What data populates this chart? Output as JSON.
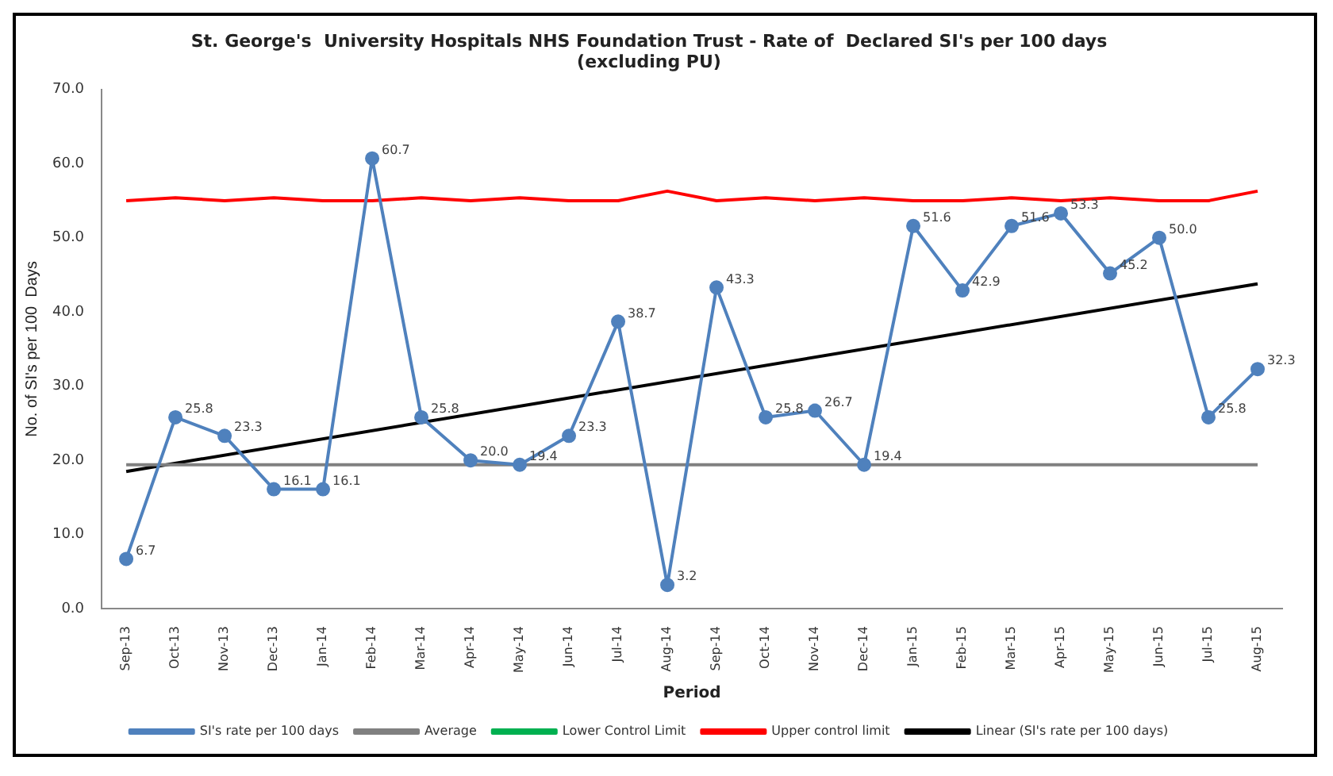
{
  "chart_data": {
    "type": "line",
    "title": "St. George's  University Hospitals NHS Foundation Trust - Rate of  Declared SI's per 100 days",
    "subtitle": "(excluding PU)",
    "xlabel": "Period",
    "ylabel": "No. of SI's per 100  Days",
    "categories": [
      "Sep-13",
      "Oct-13",
      "Nov-13",
      "Dec-13",
      "Jan-14",
      "Feb-14",
      "Mar-14",
      "Apr-14",
      "May-14",
      "Jun-14",
      "Jul-14",
      "Aug-14",
      "Sep-14",
      "Oct-14",
      "Nov-14",
      "Dec-14",
      "Jan-15",
      "Feb-15",
      "Mar-15",
      "Apr-15",
      "May-15",
      "Jun-15",
      "Jul-15",
      "Aug-15"
    ],
    "series": [
      {
        "name": "SI's rate per 100 days",
        "color": "#4f81bd",
        "marker": "circle",
        "value_labels": [
          "6.7",
          "25.8",
          "23.3",
          "16.1",
          "16.1",
          "60.7",
          "25.8",
          "20.0",
          "19.4",
          "23.3",
          "38.7",
          "3.2",
          "43.3",
          "25.8",
          "26.7",
          "19.4",
          "51.6",
          "42.9",
          "51.6",
          "53.3",
          "45.2",
          "50.0",
          "25.8",
          "32.3"
        ],
        "values": [
          6.7,
          25.8,
          23.3,
          16.1,
          16.1,
          60.7,
          25.8,
          20.0,
          19.4,
          23.3,
          38.7,
          3.2,
          43.3,
          25.8,
          26.7,
          19.4,
          51.6,
          42.9,
          51.6,
          53.3,
          45.2,
          50.0,
          25.8,
          32.3
        ]
      },
      {
        "name": "Average",
        "color": "#808080",
        "values": [
          19.4,
          19.4,
          19.4,
          19.4,
          19.4,
          19.4,
          19.4,
          19.4,
          19.4,
          19.4,
          19.4,
          19.4,
          19.4,
          19.4,
          19.4,
          19.4,
          19.4,
          19.4,
          19.4,
          19.4,
          19.4,
          19.4,
          19.4,
          19.4
        ]
      },
      {
        "name": "Lower Control Limit",
        "color": "#00b050",
        "values": [
          null,
          null,
          null,
          null,
          null,
          null,
          null,
          null,
          null,
          null,
          null,
          null,
          null,
          null,
          null,
          null,
          null,
          null,
          null,
          null,
          null,
          null,
          null,
          null
        ]
      },
      {
        "name": "Upper control limit",
        "color": "#ff0000",
        "values": [
          55.0,
          55.4,
          55.0,
          55.4,
          55.0,
          55.0,
          55.4,
          55.0,
          55.4,
          55.0,
          55.0,
          56.3,
          55.0,
          55.4,
          55.0,
          55.4,
          55.0,
          55.0,
          55.4,
          55.0,
          55.4,
          55.0,
          55.0,
          56.3
        ]
      },
      {
        "name": "Linear (SI's rate per 100 days)",
        "color": "#000000",
        "x": [
          "Sep-13",
          "Aug-15"
        ],
        "values": [
          18.5,
          43.8
        ]
      }
    ],
    "ylim": [
      0,
      70
    ],
    "yticks": [
      {
        "value": 0,
        "label": "0.0"
      },
      {
        "value": 10,
        "label": "10.0"
      },
      {
        "value": 20,
        "label": "20.0"
      },
      {
        "value": 30,
        "label": "30.0"
      },
      {
        "value": 40,
        "label": "40.0"
      },
      {
        "value": 50,
        "label": "50.0"
      },
      {
        "value": 60,
        "label": "60.0"
      },
      {
        "value": 70,
        "label": "70.0"
      }
    ],
    "grid": false,
    "legend": "bottom",
    "marker": "none",
    "line_style": "solid"
  }
}
